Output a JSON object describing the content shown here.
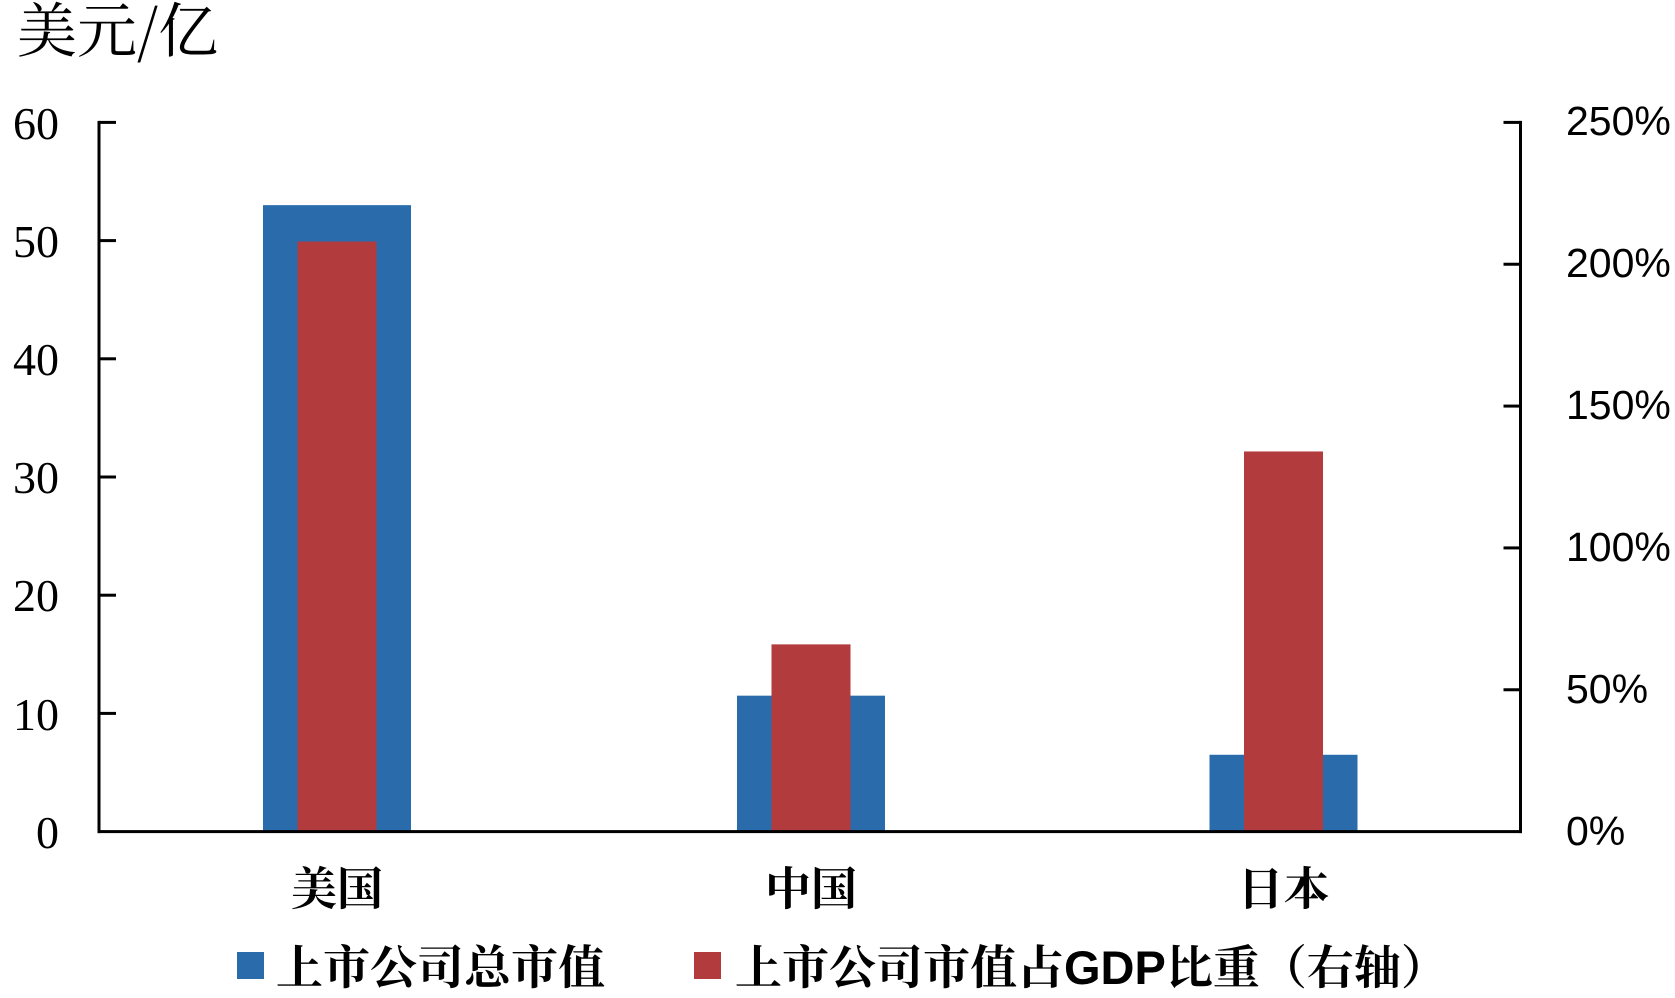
{
  "chart_data": {
    "type": "bar",
    "title": "美元/亿",
    "categories": [
      "美国",
      "中国",
      "日本"
    ],
    "series": [
      {
        "name": "上市公司总市值",
        "axis": "left",
        "color": "#2A6BAC",
        "values": [
          53,
          11.5,
          6.5
        ]
      },
      {
        "name": "上市公司市值占GDP比重（右轴）",
        "axis": "right",
        "color": "#B23B3E",
        "values_percent": [
          208,
          66,
          134
        ]
      }
    ],
    "left_axis": {
      "unit_label": "美元/亿",
      "min": 0,
      "max": 60,
      "tick_step": 10,
      "tick_labels": [
        "0",
        "10",
        "20",
        "30",
        "40",
        "50",
        "60"
      ]
    },
    "right_axis": {
      "min_percent": 0,
      "max_percent": 250,
      "tick_step_percent": 50,
      "tick_labels": [
        "0%",
        "50%",
        "100%",
        "150%",
        "200%",
        "250%"
      ]
    },
    "legend": {
      "position": "bottom",
      "entries": [
        "上市公司总市值",
        "上市公司市值占GDP比重（右轴）"
      ]
    },
    "grid": false,
    "background_color": "#FFFFFF",
    "axis_color": "#000000"
  }
}
